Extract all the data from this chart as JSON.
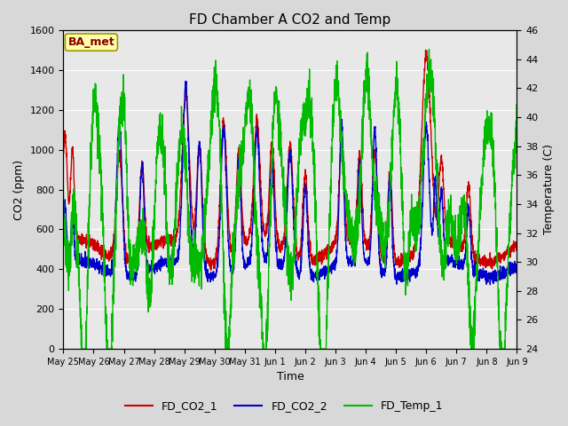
{
  "title": "FD Chamber A CO2 and Temp",
  "xlabel": "Time",
  "ylabel_left": "CO2 (ppm)",
  "ylabel_right": "Temperature (C)",
  "ylim_left": [
    0,
    1600
  ],
  "ylim_right": [
    24,
    46
  ],
  "yticks_left": [
    0,
    200,
    400,
    600,
    800,
    1000,
    1200,
    1400,
    1600
  ],
  "yticks_right": [
    24,
    26,
    28,
    30,
    32,
    34,
    36,
    38,
    40,
    42,
    44,
    46
  ],
  "fig_bg_color": "#d8d8d8",
  "plot_bg_color": "#e8e8e8",
  "grid_color": "#ffffff",
  "co2_1_color": "#cc0000",
  "co2_2_color": "#0000cc",
  "temp_color": "#00bb00",
  "line_width": 1.0,
  "annotation_text": "BA_met",
  "annotation_bg": "#ffffaa",
  "annotation_border": "#999900",
  "annotation_color": "#880000",
  "x_tick_labels": [
    "May 25",
    "May 26",
    "May 27",
    "May 28",
    "May 29",
    "May 30",
    "May 31",
    "Jun 1",
    "Jun 2",
    "Jun 3",
    "Jun 4",
    "Jun 5",
    "Jun 6",
    "Jun 7",
    "Jun 8",
    "Jun 9"
  ],
  "title_fontsize": 11,
  "axis_label_fontsize": 9,
  "tick_fontsize": 8,
  "legend_fontsize": 9
}
